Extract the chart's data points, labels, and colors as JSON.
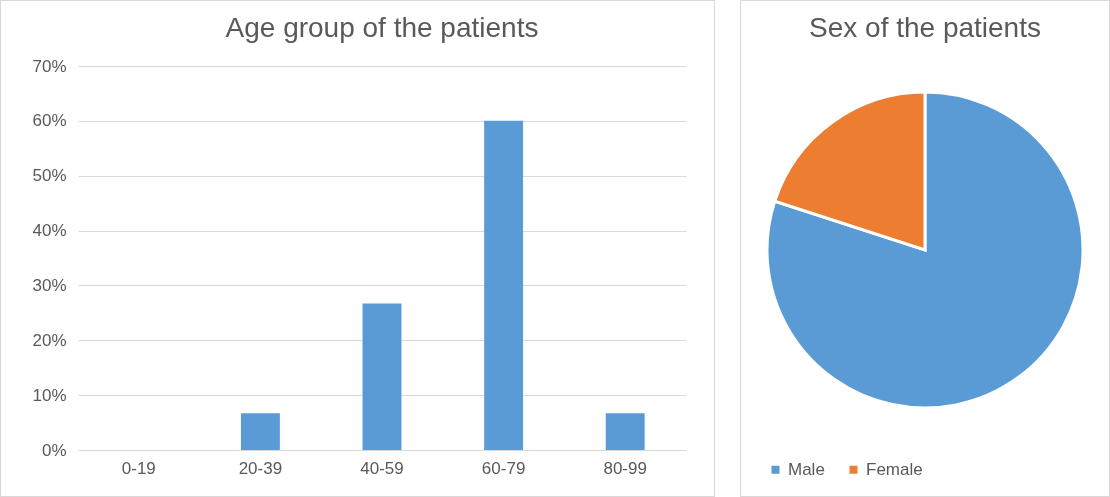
{
  "chart_data": [
    {
      "type": "bar",
      "title": "Age group of the patients",
      "categories": [
        "0-19",
        "20-39",
        "40-59",
        "60-79",
        "80-99"
      ],
      "values": [
        0,
        6.7,
        26.7,
        60,
        6.7
      ],
      "color": "#5b9bd5",
      "ylim": [
        0,
        70
      ],
      "yticks": [
        {
          "value": 0,
          "label": "0%"
        },
        {
          "value": 10,
          "label": "10%"
        },
        {
          "value": 20,
          "label": "20%"
        },
        {
          "value": 30,
          "label": "30%"
        },
        {
          "value": 40,
          "label": "40%"
        },
        {
          "value": 50,
          "label": "50%"
        },
        {
          "value": 60,
          "label": "60%"
        },
        {
          "value": 70,
          "label": "70%"
        }
      ],
      "grid": "y"
    },
    {
      "type": "pie",
      "title": "Sex of the patients",
      "categories": [
        "Male",
        "Female"
      ],
      "values": [
        80,
        20
      ],
      "colors": [
        "#5b9bd5",
        "#ed7d31"
      ],
      "legend": "bottom"
    }
  ]
}
